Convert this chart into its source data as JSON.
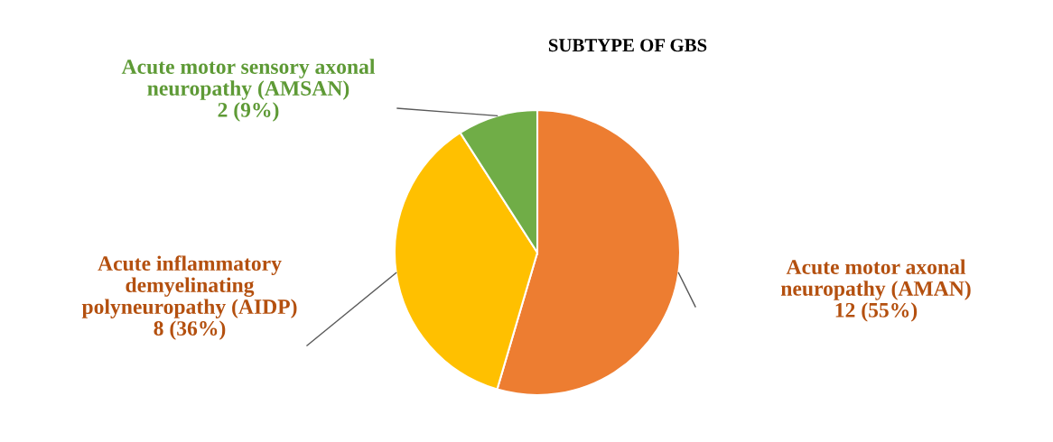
{
  "chart_data": {
    "type": "pie",
    "title": "SUBTYPE OF GBS",
    "categories": [
      "Acute motor axonal\nneuropathy (AMAN)",
      "Acute inflammatory\ndemyelinating\npolyneuropathy (AIDP)",
      "Acute motor sensory axonal\nneuropathy (AMSAN)"
    ],
    "values": [
      12,
      8,
      2
    ],
    "value_labels": [
      "12 (55%)",
      "8 (36%)",
      "2 (9%)"
    ],
    "colors": [
      "#ed7d31",
      "#ffc000",
      "#70ad47"
    ],
    "legend": false
  }
}
